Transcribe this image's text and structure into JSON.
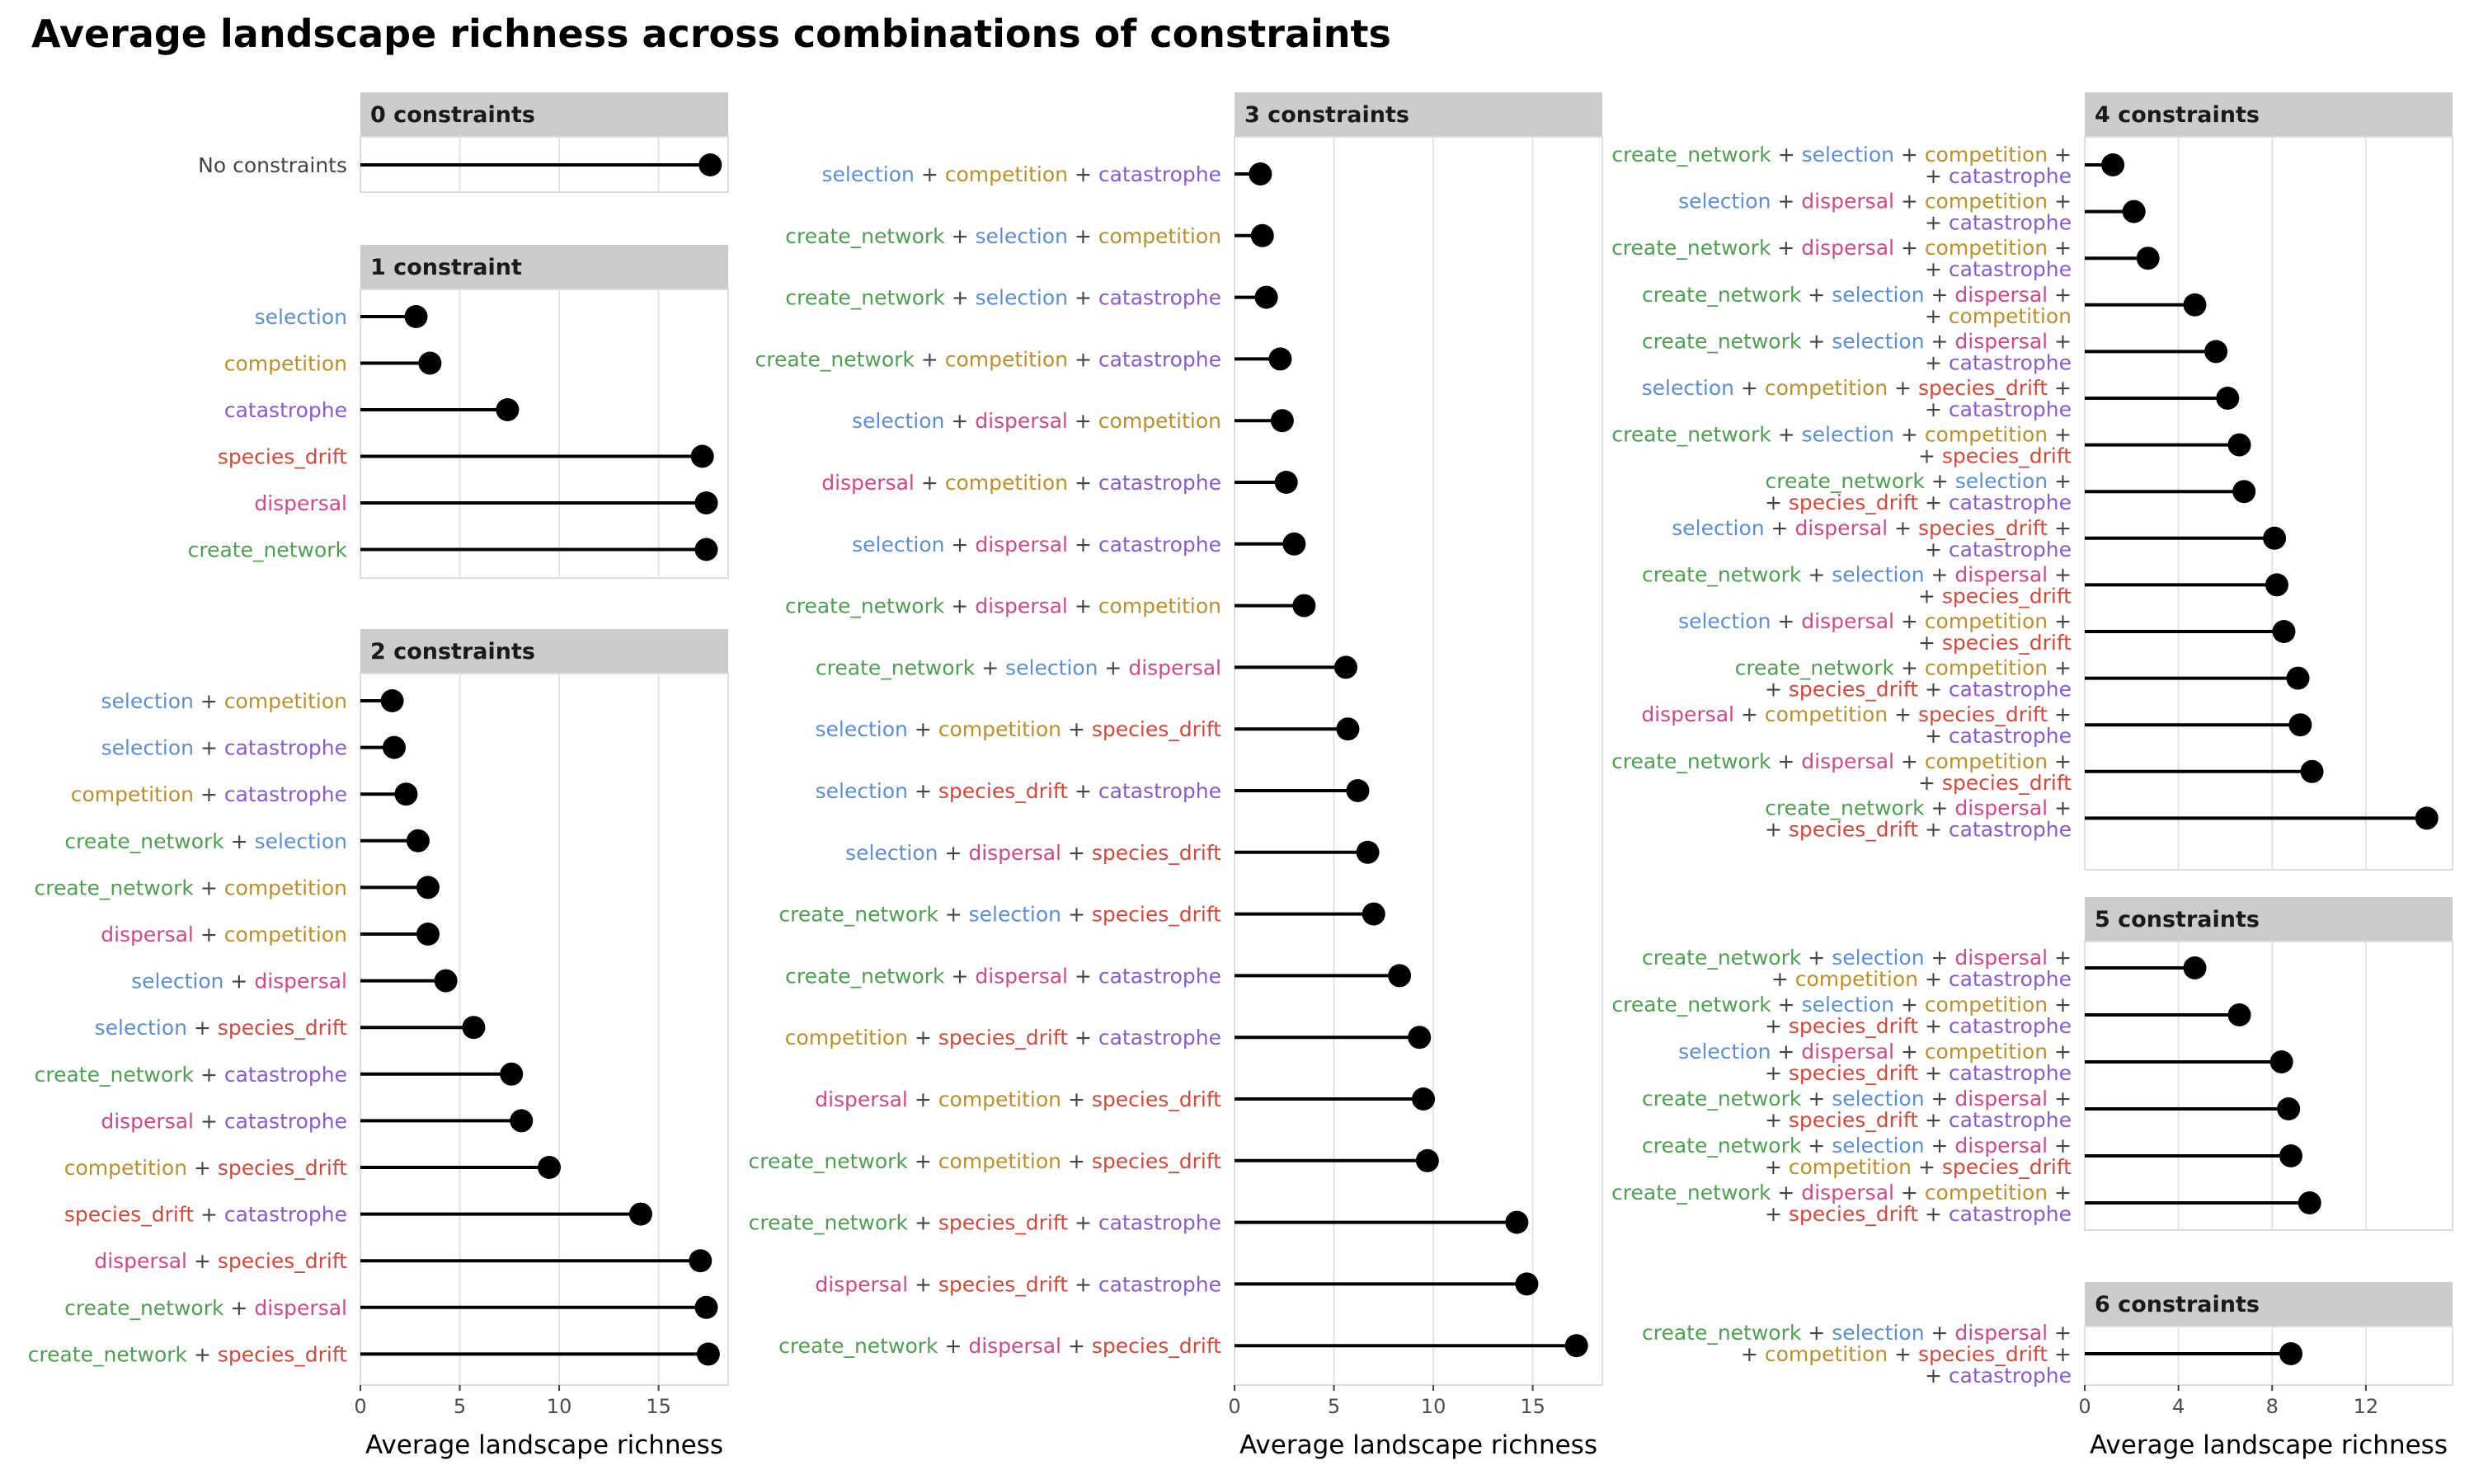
{
  "title": "Average landscape richness across combinations of constraints",
  "term_colors": {
    "selection": "#5b8fcf",
    "competition": "#b8902e",
    "catastrophe": "#8a5cc9",
    "species_drift": "#cf4a3c",
    "dispersal": "#cc4a86",
    "create_network": "#4f9e52",
    "No constraints": "#444444",
    "+": "#444444"
  },
  "chart_data": [
    {
      "type": "lollipop",
      "title": "0 constraints",
      "xlabel": "",
      "xlim": [
        0,
        18.5
      ],
      "xticks": [
        0,
        5,
        10,
        15
      ],
      "show_xticks": false,
      "grid": true,
      "items": [
        {
          "terms": [
            [
              "No constraints"
            ]
          ],
          "value": 17.6
        }
      ]
    },
    {
      "type": "lollipop",
      "title": "1 constraint",
      "xlabel": "",
      "xlim": [
        0,
        18.5
      ],
      "xticks": [
        0,
        5,
        10,
        15
      ],
      "show_xticks": false,
      "grid": true,
      "items": [
        {
          "terms": [
            [
              "selection"
            ]
          ],
          "value": 2.8
        },
        {
          "terms": [
            [
              "competition"
            ]
          ],
          "value": 3.5
        },
        {
          "terms": [
            [
              "catastrophe"
            ]
          ],
          "value": 7.4
        },
        {
          "terms": [
            [
              "species_drift"
            ]
          ],
          "value": 17.2
        },
        {
          "terms": [
            [
              "dispersal"
            ]
          ],
          "value": 17.4
        },
        {
          "terms": [
            [
              "create_network"
            ]
          ],
          "value": 17.4
        }
      ]
    },
    {
      "type": "lollipop",
      "title": "2 constraints",
      "xlabel": "Average landscape richness",
      "xlim": [
        0,
        18.5
      ],
      "xticks": [
        0,
        5,
        10,
        15
      ],
      "show_xticks": true,
      "grid": true,
      "items": [
        {
          "terms": [
            [
              "selection",
              "competition"
            ]
          ],
          "value": 1.6
        },
        {
          "terms": [
            [
              "selection",
              "catastrophe"
            ]
          ],
          "value": 1.7
        },
        {
          "terms": [
            [
              "competition",
              "catastrophe"
            ]
          ],
          "value": 2.3
        },
        {
          "terms": [
            [
              "create_network",
              "selection"
            ]
          ],
          "value": 2.9
        },
        {
          "terms": [
            [
              "create_network",
              "competition"
            ]
          ],
          "value": 3.4
        },
        {
          "terms": [
            [
              "dispersal",
              "competition"
            ]
          ],
          "value": 3.4
        },
        {
          "terms": [
            [
              "selection",
              "dispersal"
            ]
          ],
          "value": 4.3
        },
        {
          "terms": [
            [
              "selection",
              "species_drift"
            ]
          ],
          "value": 5.7
        },
        {
          "terms": [
            [
              "create_network",
              "catastrophe"
            ]
          ],
          "value": 7.6
        },
        {
          "terms": [
            [
              "dispersal",
              "catastrophe"
            ]
          ],
          "value": 8.1
        },
        {
          "terms": [
            [
              "competition",
              "species_drift"
            ]
          ],
          "value": 9.5
        },
        {
          "terms": [
            [
              "species_drift",
              "catastrophe"
            ]
          ],
          "value": 14.1
        },
        {
          "terms": [
            [
              "dispersal",
              "species_drift"
            ]
          ],
          "value": 17.1
        },
        {
          "terms": [
            [
              "create_network",
              "dispersal"
            ]
          ],
          "value": 17.4
        },
        {
          "terms": [
            [
              "create_network",
              "species_drift"
            ]
          ],
          "value": 17.5
        }
      ]
    },
    {
      "type": "lollipop",
      "title": "3 constraints",
      "xlabel": "Average landscape richness",
      "xlim": [
        0,
        18.5
      ],
      "xticks": [
        0,
        5,
        10,
        15
      ],
      "show_xticks": true,
      "grid": true,
      "items": [
        {
          "terms": [
            [
              "selection",
              "competition",
              "catastrophe"
            ]
          ],
          "value": 1.3
        },
        {
          "terms": [
            [
              "create_network",
              "selection",
              "competition"
            ]
          ],
          "value": 1.4
        },
        {
          "terms": [
            [
              "create_network",
              "selection",
              "catastrophe"
            ]
          ],
          "value": 1.6
        },
        {
          "terms": [
            [
              "create_network",
              "competition",
              "catastrophe"
            ]
          ],
          "value": 2.3
        },
        {
          "terms": [
            [
              "selection",
              "dispersal",
              "competition"
            ]
          ],
          "value": 2.4
        },
        {
          "terms": [
            [
              "dispersal",
              "competition",
              "catastrophe"
            ]
          ],
          "value": 2.6
        },
        {
          "terms": [
            [
              "selection",
              "dispersal",
              "catastrophe"
            ]
          ],
          "value": 3.0
        },
        {
          "terms": [
            [
              "create_network",
              "dispersal",
              "competition"
            ]
          ],
          "value": 3.5
        },
        {
          "terms": [
            [
              "create_network",
              "selection",
              "dispersal"
            ]
          ],
          "value": 5.6
        },
        {
          "terms": [
            [
              "selection",
              "competition",
              "species_drift"
            ]
          ],
          "value": 5.7
        },
        {
          "terms": [
            [
              "selection",
              "species_drift",
              "catastrophe"
            ]
          ],
          "value": 6.2
        },
        {
          "terms": [
            [
              "selection",
              "dispersal",
              "species_drift"
            ]
          ],
          "value": 6.7
        },
        {
          "terms": [
            [
              "create_network",
              "selection",
              "species_drift"
            ]
          ],
          "value": 7.0
        },
        {
          "terms": [
            [
              "create_network",
              "dispersal",
              "catastrophe"
            ]
          ],
          "value": 8.3
        },
        {
          "terms": [
            [
              "competition",
              "species_drift",
              "catastrophe"
            ]
          ],
          "value": 9.3
        },
        {
          "terms": [
            [
              "dispersal",
              "competition",
              "species_drift"
            ]
          ],
          "value": 9.5
        },
        {
          "terms": [
            [
              "create_network",
              "competition",
              "species_drift"
            ]
          ],
          "value": 9.7
        },
        {
          "terms": [
            [
              "create_network",
              "species_drift",
              "catastrophe"
            ]
          ],
          "value": 14.2
        },
        {
          "terms": [
            [
              "dispersal",
              "species_drift",
              "catastrophe"
            ]
          ],
          "value": 14.7
        },
        {
          "terms": [
            [
              "create_network",
              "dispersal",
              "species_drift"
            ]
          ],
          "value": 17.2
        }
      ]
    },
    {
      "type": "lollipop",
      "title": "4 constraints",
      "xlabel": "",
      "xlim": [
        0,
        15.7
      ],
      "xticks": [
        0,
        4,
        8,
        12
      ],
      "show_xticks": false,
      "grid": true,
      "items": [
        {
          "terms": [
            [
              "create_network",
              "selection",
              "competition"
            ],
            [
              "catastrophe"
            ]
          ],
          "value": 1.2
        },
        {
          "terms": [
            [
              "selection",
              "dispersal",
              "competition"
            ],
            [
              "catastrophe"
            ]
          ],
          "value": 2.1
        },
        {
          "terms": [
            [
              "create_network",
              "dispersal",
              "competition"
            ],
            [
              "catastrophe"
            ]
          ],
          "value": 2.7
        },
        {
          "terms": [
            [
              "create_network",
              "selection",
              "dispersal"
            ],
            [
              "competition"
            ]
          ],
          "value": 4.7
        },
        {
          "terms": [
            [
              "create_network",
              "selection",
              "dispersal"
            ],
            [
              "catastrophe"
            ]
          ],
          "value": 5.6
        },
        {
          "terms": [
            [
              "selection",
              "competition",
              "species_drift"
            ],
            [
              "catastrophe"
            ]
          ],
          "value": 6.1
        },
        {
          "terms": [
            [
              "create_network",
              "selection",
              "competition"
            ],
            [
              "species_drift"
            ]
          ],
          "value": 6.6
        },
        {
          "terms": [
            [
              "create_network",
              "selection"
            ],
            [
              "species_drift",
              "catastrophe"
            ]
          ],
          "value": 6.8
        },
        {
          "terms": [
            [
              "selection",
              "dispersal",
              "species_drift"
            ],
            [
              "catastrophe"
            ]
          ],
          "value": 8.1
        },
        {
          "terms": [
            [
              "create_network",
              "selection",
              "dispersal"
            ],
            [
              "species_drift"
            ]
          ],
          "value": 8.2
        },
        {
          "terms": [
            [
              "selection",
              "dispersal",
              "competition"
            ],
            [
              "species_drift"
            ]
          ],
          "value": 8.5
        },
        {
          "terms": [
            [
              "create_network",
              "competition"
            ],
            [
              "species_drift",
              "catastrophe"
            ]
          ],
          "value": 9.1
        },
        {
          "terms": [
            [
              "dispersal",
              "competition",
              "species_drift"
            ],
            [
              "catastrophe"
            ]
          ],
          "value": 9.2
        },
        {
          "terms": [
            [
              "create_network",
              "dispersal",
              "competition"
            ],
            [
              "species_drift"
            ]
          ],
          "value": 9.7
        },
        {
          "terms": [
            [
              "create_network",
              "dispersal"
            ],
            [
              "species_drift",
              "catastrophe"
            ]
          ],
          "value": 14.6
        }
      ]
    },
    {
      "type": "lollipop",
      "title": "5 constraints",
      "xlabel": "",
      "xlim": [
        0,
        15.7
      ],
      "xticks": [
        0,
        4,
        8,
        12
      ],
      "show_xticks": false,
      "grid": true,
      "items": [
        {
          "terms": [
            [
              "create_network",
              "selection",
              "dispersal"
            ],
            [
              "competition",
              "catastrophe"
            ]
          ],
          "value": 4.7
        },
        {
          "terms": [
            [
              "create_network",
              "selection",
              "competition"
            ],
            [
              "species_drift",
              "catastrophe"
            ]
          ],
          "value": 6.6
        },
        {
          "terms": [
            [
              "selection",
              "dispersal",
              "competition"
            ],
            [
              "species_drift",
              "catastrophe"
            ]
          ],
          "value": 8.4
        },
        {
          "terms": [
            [
              "create_network",
              "selection",
              "dispersal"
            ],
            [
              "species_drift",
              "catastrophe"
            ]
          ],
          "value": 8.7
        },
        {
          "terms": [
            [
              "create_network",
              "selection",
              "dispersal"
            ],
            [
              "competition",
              "species_drift"
            ]
          ],
          "value": 8.8
        },
        {
          "terms": [
            [
              "create_network",
              "dispersal",
              "competition"
            ],
            [
              "species_drift",
              "catastrophe"
            ]
          ],
          "value": 9.6
        }
      ]
    },
    {
      "type": "lollipop",
      "title": "6 constraints",
      "xlabel": "Average landscape richness",
      "xlim": [
        0,
        15.7
      ],
      "xticks": [
        0,
        4,
        8,
        12
      ],
      "show_xticks": true,
      "grid": true,
      "items": [
        {
          "terms": [
            [
              "create_network",
              "selection",
              "dispersal"
            ],
            [
              "competition",
              "species_drift"
            ],
            [
              "catastrophe"
            ]
          ],
          "value": 8.8
        }
      ]
    }
  ]
}
